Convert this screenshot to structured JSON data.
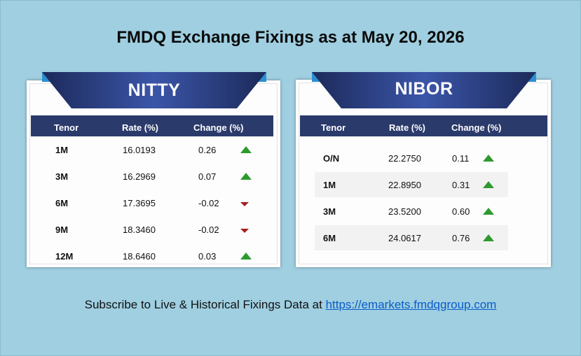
{
  "title": "FMDQ Exchange Fixings as at May 20, 2026",
  "nitty": {
    "banner": "NITTY",
    "headers": [
      "Tenor",
      "Rate (%)",
      "Change (%)"
    ],
    "rows": [
      {
        "tenor": "1M",
        "rate": "16.0193",
        "change": "0.26",
        "direction": "up"
      },
      {
        "tenor": "3M",
        "rate": "16.2969",
        "change": "0.07",
        "direction": "up"
      },
      {
        "tenor": "6M",
        "rate": "17.3695",
        "change": "-0.02",
        "direction": "down"
      },
      {
        "tenor": "9M",
        "rate": "18.3460",
        "change": "-0.02",
        "direction": "down"
      },
      {
        "tenor": "12M",
        "rate": "18.6460",
        "change": "0.03",
        "direction": "up"
      }
    ]
  },
  "nibor": {
    "banner": "NIBOR",
    "headers": [
      "Tenor",
      "Rate (%)",
      "Change (%)"
    ],
    "rows": [
      {
        "tenor": "O/N",
        "rate": "22.2750",
        "change": "0.11",
        "direction": "up"
      },
      {
        "tenor": "1M",
        "rate": "22.8950",
        "change": "0.31",
        "direction": "up"
      },
      {
        "tenor": "3M",
        "rate": "23.5200",
        "change": "0.60",
        "direction": "up"
      },
      {
        "tenor": "6M",
        "rate": "24.0617",
        "change": "0.76",
        "direction": "up"
      }
    ]
  },
  "subscribe": {
    "text": "Subscribe to Live & Historical Fixings Data at ",
    "link": "https://emarkets.fmdqgroup.com"
  },
  "colors": {
    "background": "#9fcfe1",
    "banner": "#2a3a6b",
    "header_bar": "#2a3a6b",
    "up_arrow": "#2e9a2e",
    "down_arrow": "#a81f1f",
    "link": "#0b5cc7"
  }
}
